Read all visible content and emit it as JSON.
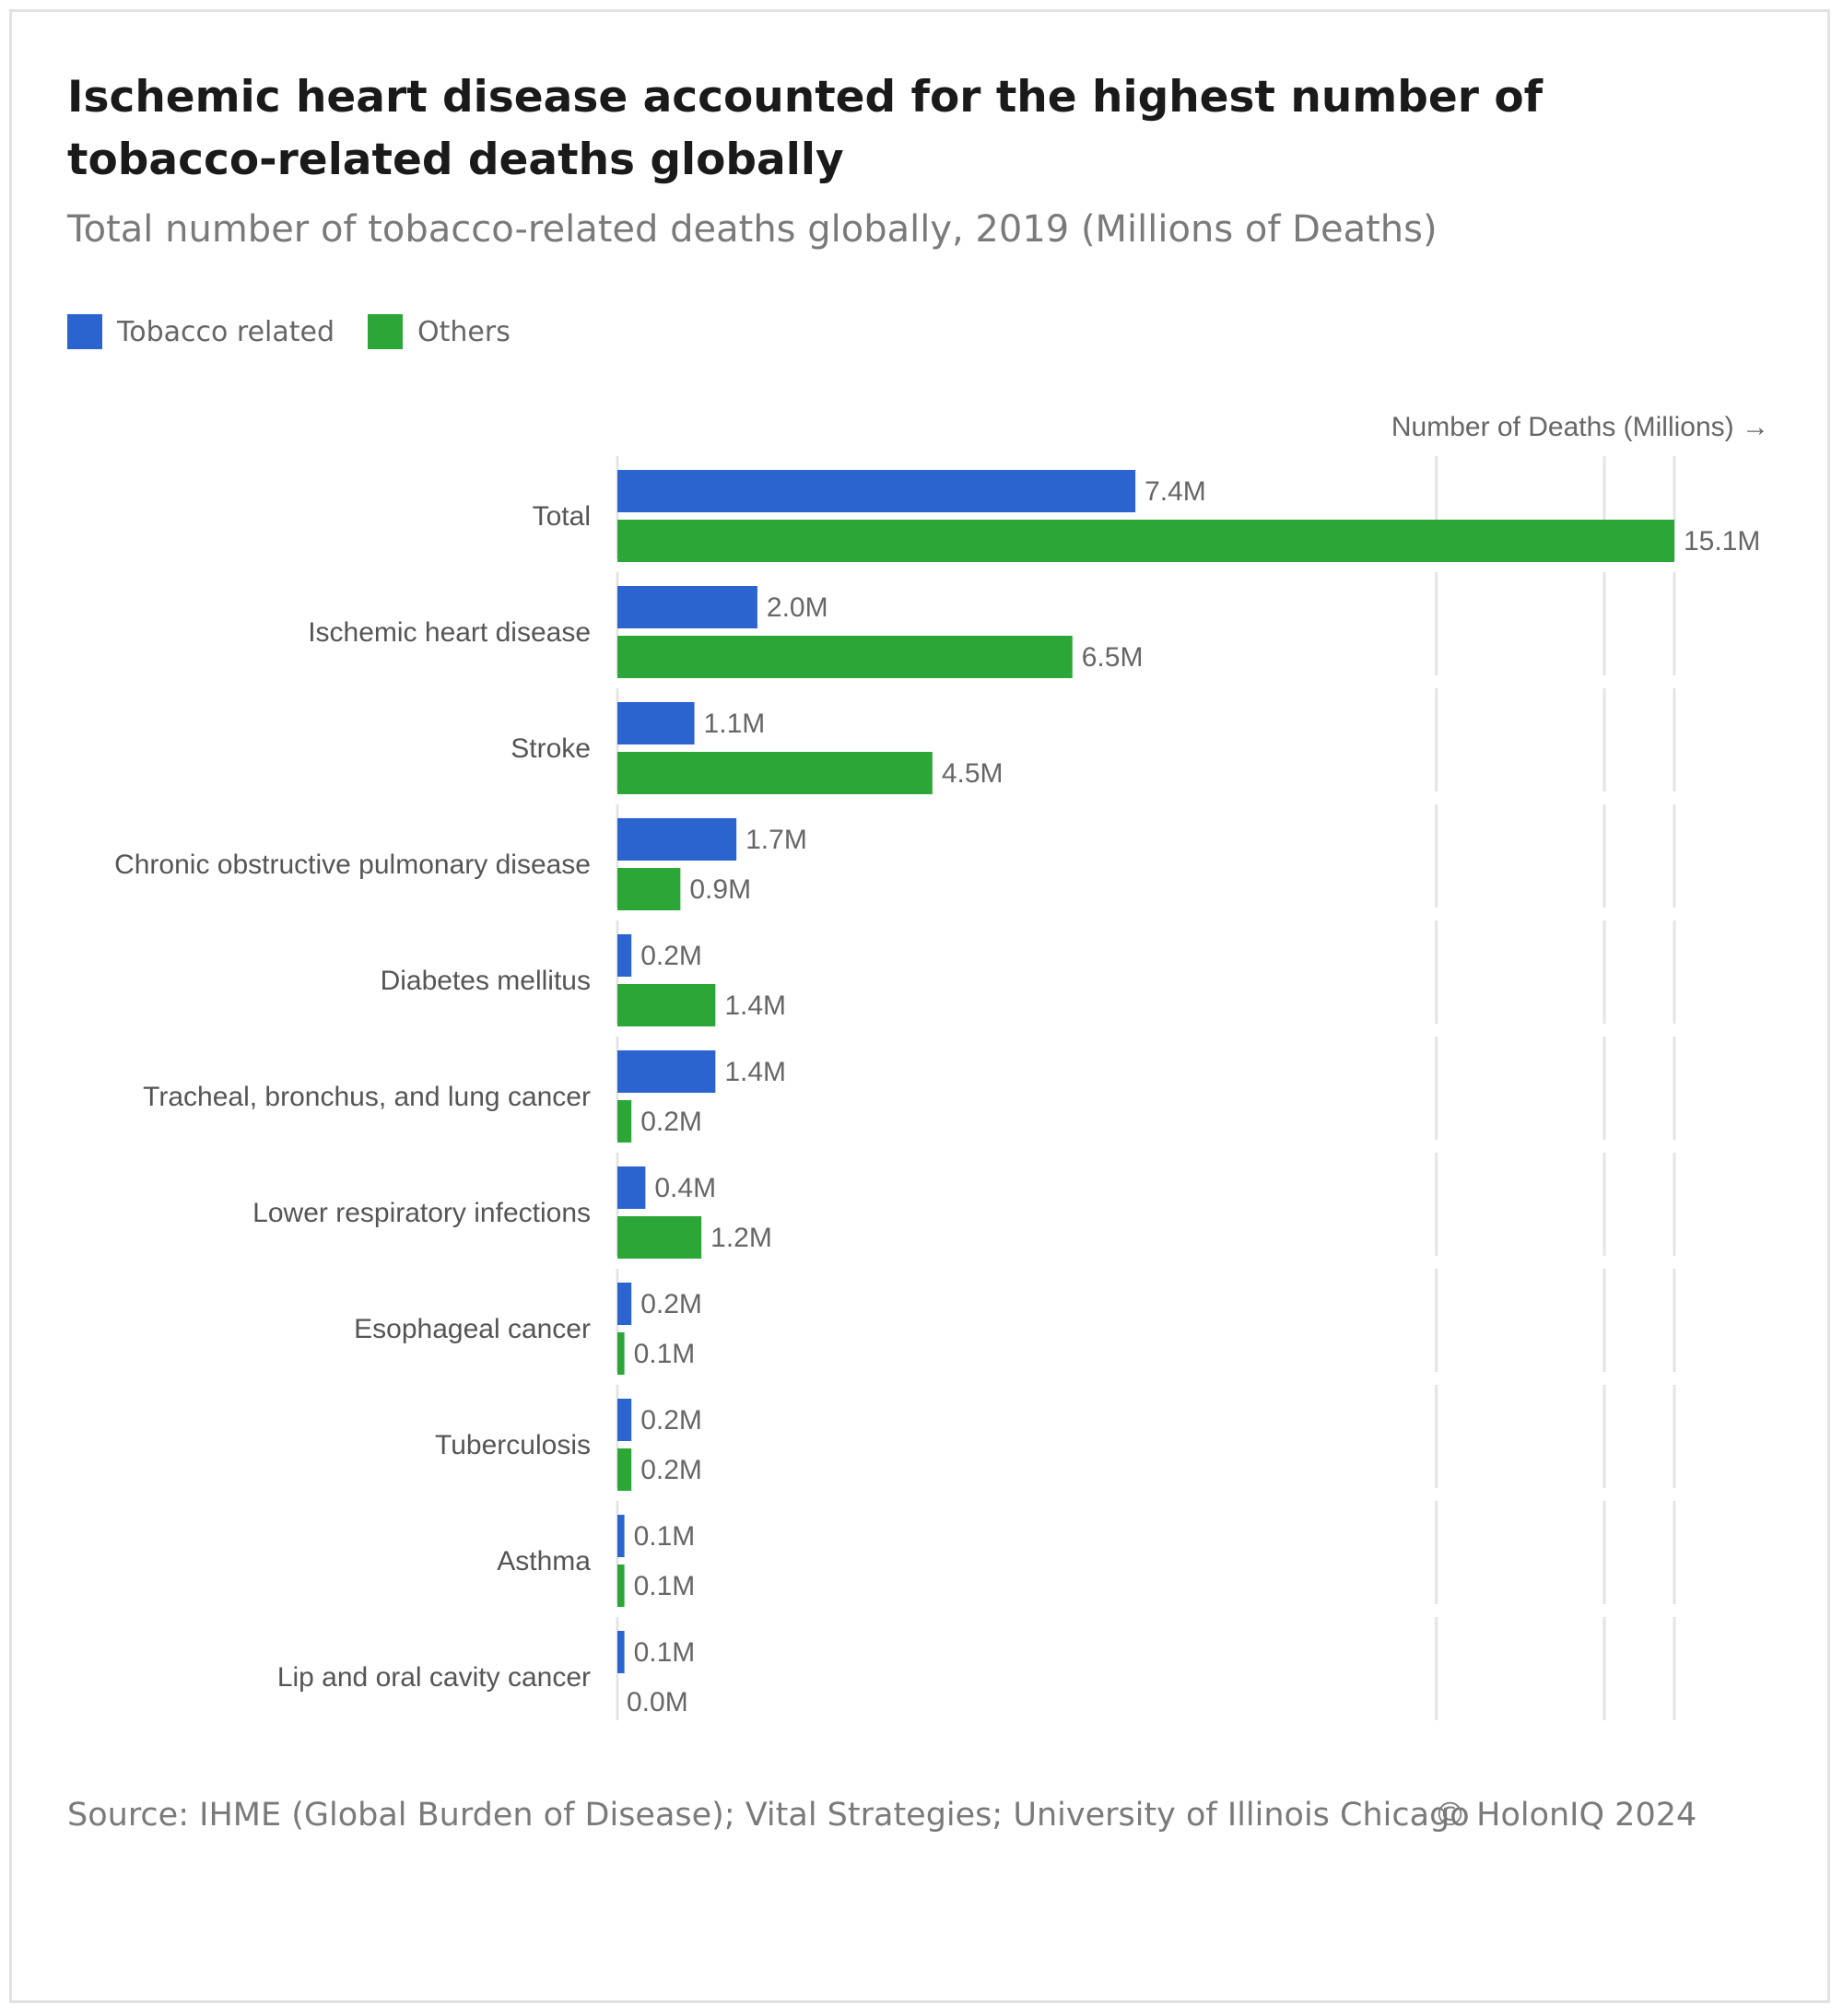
{
  "title": "Ischemic heart disease accounted for the highest number of tobacco-related deaths globally",
  "subtitle": "Total number of tobacco-related deaths globally, 2019 (Millions of Deaths)",
  "legend": [
    {
      "label": "Tobacco related",
      "color": "#2b64cf"
    },
    {
      "label": "Others",
      "color": "#2ba637"
    }
  ],
  "source": "Source: IHME (Global Burden of Disease); Vital Strategies; University of Illinois Chicago",
  "copyright": "© HolonIQ 2024",
  "chart_data": {
    "type": "bar",
    "orientation": "horizontal",
    "xlabel": "Number of Deaths (Millions) →",
    "xlim": [
      0,
      15.1
    ],
    "gridlines": [
      11.7,
      14.1,
      15.1
    ],
    "categories": [
      "Total",
      "Ischemic heart disease",
      "Stroke",
      "Chronic obstructive pulmonary disease",
      "Diabetes mellitus",
      "Tracheal, bronchus, and lung cancer",
      "Lower respiratory infections",
      "Esophageal cancer",
      "Tuberculosis",
      "Asthma",
      "Lip and oral cavity cancer"
    ],
    "series": [
      {
        "name": "Tobacco related",
        "color": "#2b64cf",
        "values": [
          7.4,
          2.0,
          1.1,
          1.7,
          0.2,
          1.4,
          0.4,
          0.2,
          0.2,
          0.1,
          0.1
        ],
        "labels": [
          "7.4M",
          "2.0M",
          "1.1M",
          "1.7M",
          "0.2M",
          "1.4M",
          "0.4M",
          "0.2M",
          "0.2M",
          "0.1M",
          "0.1M"
        ]
      },
      {
        "name": "Others",
        "color": "#2ba637",
        "values": [
          15.1,
          6.5,
          4.5,
          0.9,
          1.4,
          0.2,
          1.2,
          0.1,
          0.2,
          0.1,
          0.0
        ],
        "labels": [
          "15.1M",
          "6.5M",
          "4.5M",
          "0.9M",
          "1.4M",
          "0.2M",
          "1.2M",
          "0.1M",
          "0.2M",
          "0.1M",
          "0.0M"
        ]
      }
    ]
  }
}
